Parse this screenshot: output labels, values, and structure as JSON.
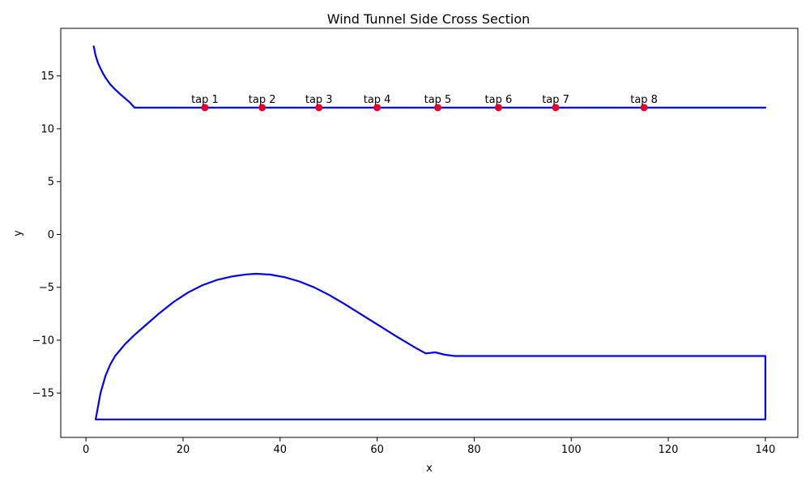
{
  "chart_data": {
    "type": "line",
    "title": "Wind Tunnel Side Cross Section",
    "xlabel": "x",
    "ylabel": "y",
    "xlim": [
      -5.2,
      146.7
    ],
    "ylim": [
      -19.2,
      19.5
    ],
    "grid": false,
    "xticks": [
      0,
      20,
      40,
      60,
      80,
      100,
      120,
      140
    ],
    "xtick_labels": [
      "0",
      "20",
      "40",
      "60",
      "80",
      "100",
      "120",
      "140"
    ],
    "yticks": [
      -15,
      -10,
      -5,
      0,
      5,
      10,
      15
    ],
    "ytick_labels": [
      "−15",
      "−10",
      "−5",
      "0",
      "5",
      "10",
      "15"
    ],
    "line_color": "#0000ff",
    "marker_color": "#e8002a",
    "series": [
      {
        "points": [
          [
            1.6,
            17.8
          ],
          [
            2.0,
            16.9
          ],
          [
            2.5,
            16.2
          ],
          [
            3.0,
            15.7
          ],
          [
            3.5,
            15.25
          ],
          [
            4.0,
            14.85
          ],
          [
            5.0,
            14.2
          ],
          [
            6.0,
            13.72
          ],
          [
            7.0,
            13.3
          ],
          [
            8.0,
            12.9
          ],
          [
            9.0,
            12.5
          ],
          [
            10.0,
            12.0
          ],
          [
            140.0,
            12.0
          ]
        ]
      },
      {
        "points": [
          [
            2.0,
            -17.5
          ],
          [
            3.0,
            -15.0
          ],
          [
            4.0,
            -13.4
          ],
          [
            5.0,
            -12.3
          ],
          [
            6.0,
            -11.5
          ],
          [
            8.0,
            -10.4
          ],
          [
            10.0,
            -9.5
          ],
          [
            12.0,
            -8.7
          ],
          [
            15.0,
            -7.5
          ],
          [
            18.0,
            -6.4
          ],
          [
            21.0,
            -5.5
          ],
          [
            24.0,
            -4.8
          ],
          [
            27.0,
            -4.3
          ],
          [
            30.0,
            -3.98
          ],
          [
            33.0,
            -3.78
          ],
          [
            35.0,
            -3.72
          ],
          [
            38.0,
            -3.8
          ],
          [
            41.0,
            -4.05
          ],
          [
            44.0,
            -4.45
          ],
          [
            47.0,
            -5.0
          ],
          [
            50.0,
            -5.7
          ],
          [
            53.0,
            -6.5
          ],
          [
            56.0,
            -7.35
          ],
          [
            60.0,
            -8.5
          ],
          [
            64.0,
            -9.65
          ],
          [
            68.0,
            -10.75
          ],
          [
            70.0,
            -11.25
          ],
          [
            72.0,
            -11.15
          ],
          [
            74.0,
            -11.38
          ],
          [
            76.0,
            -11.5
          ],
          [
            140.0,
            -11.5
          ],
          [
            140.0,
            -17.5
          ],
          [
            2.0,
            -17.5
          ]
        ]
      }
    ],
    "taps": [
      {
        "label": "tap 1",
        "x": 24.5,
        "y": 12.0
      },
      {
        "label": "tap 2",
        "x": 36.3,
        "y": 12.0
      },
      {
        "label": "tap 3",
        "x": 48.0,
        "y": 12.0
      },
      {
        "label": "tap 4",
        "x": 60.0,
        "y": 12.0
      },
      {
        "label": "tap 5",
        "x": 72.5,
        "y": 12.0
      },
      {
        "label": "tap 6",
        "x": 85.0,
        "y": 12.0
      },
      {
        "label": "tap 7",
        "x": 96.8,
        "y": 12.0
      },
      {
        "label": "tap 8",
        "x": 115.0,
        "y": 12.0
      }
    ]
  }
}
